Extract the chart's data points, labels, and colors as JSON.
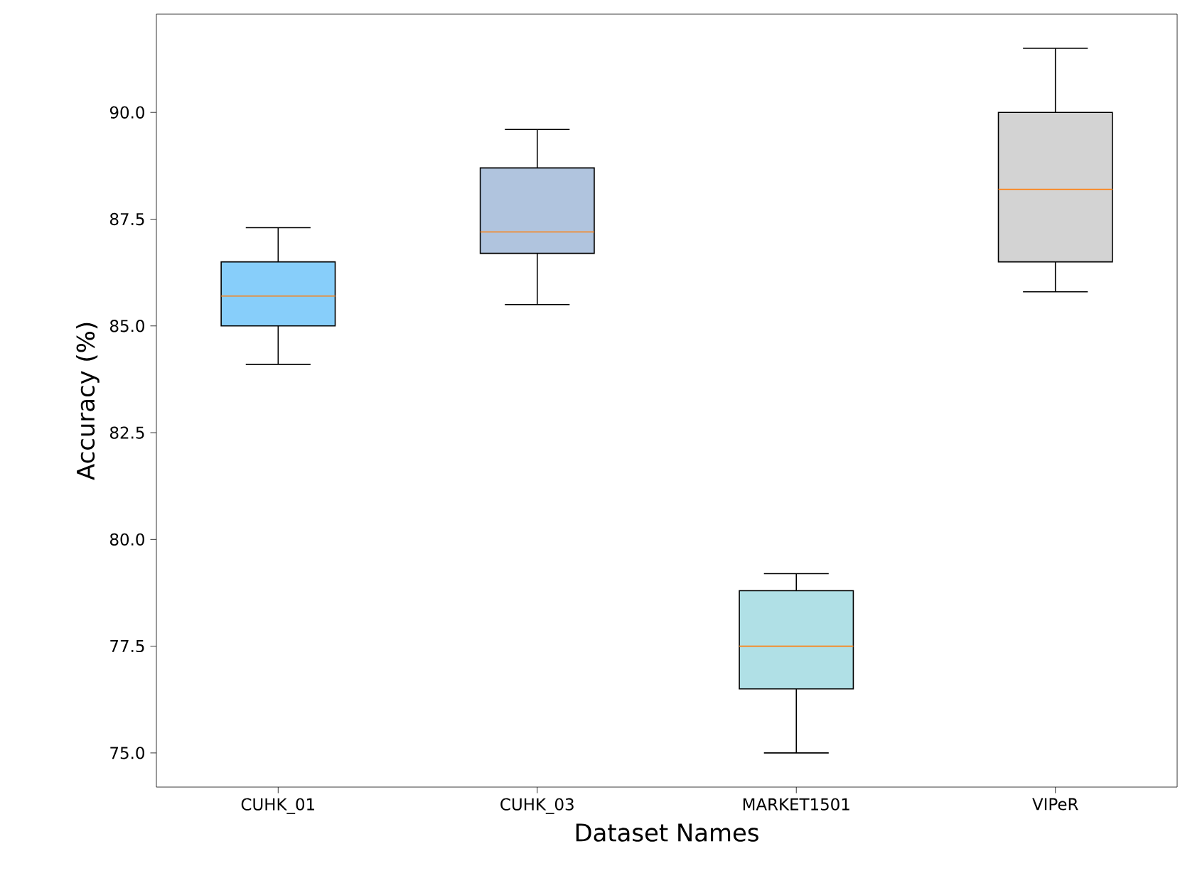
{
  "chart_data": {
    "type": "box",
    "xlabel": "Dataset Names",
    "ylabel": "Accuracy (%)",
    "categories": [
      "CUHK_01",
      "CUHK_03",
      "MARKET1501",
      "VIPeR"
    ],
    "boxes": [
      {
        "low": 84.1,
        "q1": 85.0,
        "median": 85.7,
        "q3": 86.5,
        "high": 87.3
      },
      {
        "low": 85.5,
        "q1": 86.7,
        "median": 87.2,
        "q3": 88.7,
        "high": 89.6
      },
      {
        "low": 75.0,
        "q1": 76.5,
        "median": 77.5,
        "q3": 78.8,
        "high": 79.2
      },
      {
        "low": 85.8,
        "q1": 86.5,
        "median": 88.2,
        "q3": 90.0,
        "high": 91.5
      }
    ],
    "colors": [
      "#87cefa",
      "#b0c4de",
      "#b0e0e6",
      "#d3d3d3"
    ],
    "ylim": [
      74.2,
      92.3
    ],
    "yticks": [
      {
        "value": 75,
        "label": "75.0"
      },
      {
        "value": 77.5,
        "label": "77.5"
      },
      {
        "value": 80,
        "label": "80.0"
      },
      {
        "value": 82.5,
        "label": "82.5"
      },
      {
        "value": 85,
        "label": "85.0"
      },
      {
        "value": 87.5,
        "label": "87.5"
      },
      {
        "value": 90,
        "label": "90.0"
      }
    ],
    "grid": false
  }
}
